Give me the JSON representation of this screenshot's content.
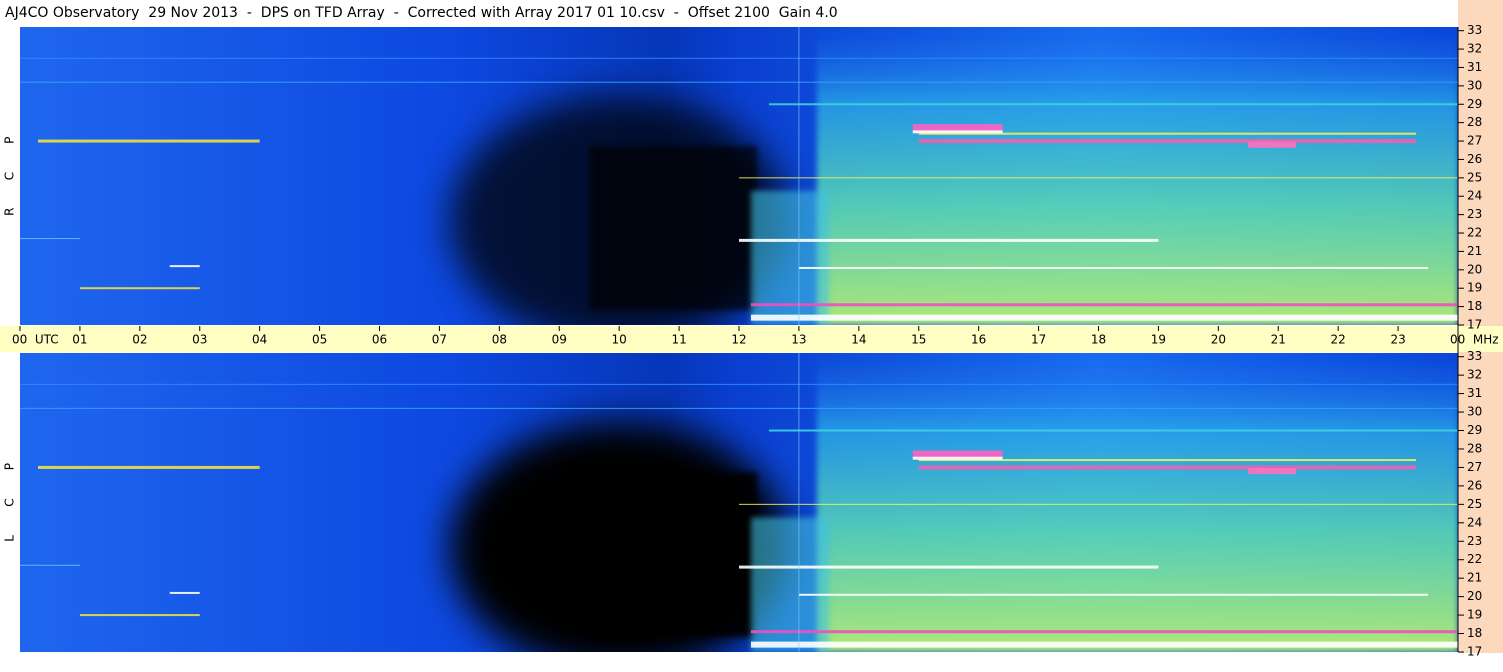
{
  "header": {
    "title": "AJ4CO Observatory  29 Nov 2013  -  DPS on TFD Array  -  Corrected with Array 2017 01 10.csv  -  Offset 2100  Gain 4.0"
  },
  "panels": [
    {
      "label": [
        "R",
        "C",
        "P"
      ]
    },
    {
      "label": [
        "L",
        "C",
        "P"
      ]
    }
  ],
  "time_axis": {
    "labels": [
      "00  UTC",
      "01",
      "02",
      "03",
      "04",
      "05",
      "06",
      "07",
      "08",
      "09",
      "10",
      "11",
      "12",
      "13",
      "14",
      "15",
      "16",
      "17",
      "18",
      "19",
      "20",
      "21",
      "22",
      "23",
      "00  MHz"
    ]
  },
  "freq_axis": {
    "range": [
      17,
      33.2
    ],
    "ticks": [
      17,
      18,
      19,
      20,
      21,
      22,
      23,
      24,
      25,
      26,
      27,
      28,
      29,
      30,
      31,
      32,
      33
    ]
  }
}
